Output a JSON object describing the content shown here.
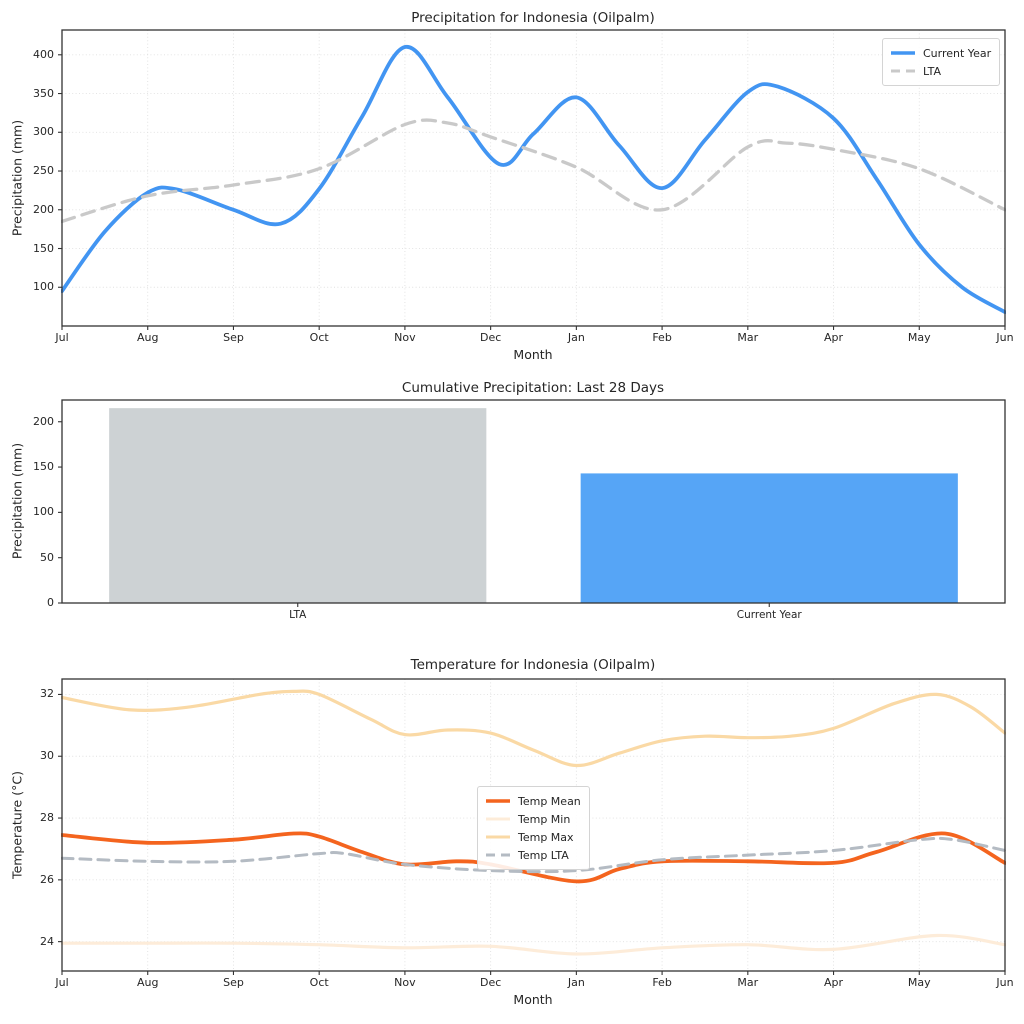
{
  "figure": {
    "background": "#ffffff",
    "text_color": "#262626",
    "grid_color": "#e0e0e0",
    "spine_color": "#333333"
  },
  "chart_data": [
    {
      "type": "line",
      "title": "Precipitation for Indonesia (Oilpalm)",
      "xlabel": "Month",
      "ylabel": "Precipitation (mm)",
      "x_tick_labels": [
        "Jul",
        "Aug",
        "Sep",
        "Oct",
        "Nov",
        "Dec",
        "Jan",
        "Feb",
        "Mar",
        "Apr",
        "May",
        "Jun"
      ],
      "y_ticks": [
        100,
        150,
        200,
        250,
        300,
        350,
        400
      ],
      "ylim": [
        50,
        432
      ],
      "grid": true,
      "legend_position": "top-right",
      "legend_entries": [
        "Current Year",
        "LTA"
      ],
      "series": [
        {
          "name": "Current Year",
          "color": "#4295f2",
          "line_style": "solid",
          "x": [
            0,
            0.5,
            1,
            1.35,
            2,
            2.55,
            3,
            3.5,
            4,
            4.5,
            5.1,
            5.5,
            6,
            6.5,
            7,
            7.5,
            8,
            8.35,
            9,
            9.5,
            10,
            10.5,
            11
          ],
          "y": [
            95,
            172,
            222,
            226,
            200,
            182,
            227,
            320,
            410,
            345,
            259,
            298,
            345,
            283,
            228,
            290,
            352,
            359,
            318,
            240,
            155,
            100,
            68
          ]
        },
        {
          "name": "LTA",
          "color": "#c9c9c9",
          "line_style": "dashed",
          "x": [
            0,
            1,
            2,
            3,
            4,
            4.5,
            5,
            6,
            7,
            8,
            8.45,
            9,
            10,
            11
          ],
          "y": [
            185,
            218,
            232,
            253,
            310,
            312,
            294,
            255,
            200,
            281,
            286,
            278,
            253,
            200
          ]
        }
      ]
    },
    {
      "type": "bar",
      "title": "Cumulative Precipitation: Last 28 Days",
      "xlabel": "",
      "ylabel": "Precipitation (mm)",
      "categories": [
        "LTA",
        "Current Year"
      ],
      "values": [
        215,
        143
      ],
      "bar_colors": [
        "#cdd2d4",
        "#56a5f6"
      ],
      "y_ticks": [
        0,
        50,
        100,
        150,
        200
      ],
      "ylim": [
        0,
        224
      ],
      "grid": false
    },
    {
      "type": "line",
      "title": "Temperature for Indonesia (Oilpalm)",
      "xlabel": "Month",
      "ylabel": "Temperature (°C)",
      "x_tick_labels": [
        "Jul",
        "Aug",
        "Sep",
        "Oct",
        "Nov",
        "Dec",
        "Jan",
        "Feb",
        "Mar",
        "Apr",
        "May",
        "Jun"
      ],
      "y_ticks": [
        24,
        26,
        28,
        30,
        32
      ],
      "ylim": [
        23.05,
        32.5
      ],
      "grid": true,
      "legend_position": "center-left",
      "legend_entries": [
        "Temp Mean",
        "Temp Min",
        "Temp Max",
        "Temp LTA"
      ],
      "series": [
        {
          "name": "Temp Mean",
          "color": "#f4641e",
          "line_style": "solid",
          "x": [
            0,
            1,
            2,
            2.7,
            3,
            3.5,
            4,
            4.6,
            5,
            6,
            6.5,
            7,
            8,
            9,
            9.5,
            10.3,
            11
          ],
          "y": [
            27.45,
            27.2,
            27.3,
            27.5,
            27.4,
            26.9,
            26.5,
            26.6,
            26.5,
            25.95,
            26.35,
            26.6,
            26.6,
            26.55,
            26.9,
            27.5,
            26.55
          ]
        },
        {
          "name": "Temp Min",
          "color": "#fdecd9",
          "line_style": "solid",
          "x": [
            0,
            1,
            2,
            3,
            4,
            5,
            6,
            7,
            8,
            9,
            10.2,
            11
          ],
          "y": [
            23.95,
            23.95,
            23.95,
            23.9,
            23.8,
            23.85,
            23.6,
            23.8,
            23.9,
            23.75,
            24.2,
            23.9
          ]
        },
        {
          "name": "Temp Max",
          "color": "#fad9a5",
          "line_style": "solid",
          "x": [
            0,
            0.8,
            1.5,
            2.3,
            2.7,
            3,
            3.6,
            4,
            4.5,
            5,
            5.5,
            6,
            6.5,
            7,
            7.5,
            8,
            8.5,
            9,
            9.7,
            10.2,
            10.6,
            11
          ],
          "y": [
            31.9,
            31.5,
            31.6,
            32.0,
            32.1,
            32.0,
            31.2,
            30.7,
            30.85,
            30.75,
            30.2,
            29.7,
            30.1,
            30.5,
            30.65,
            30.6,
            30.65,
            30.9,
            31.7,
            32.0,
            31.6,
            30.75
          ]
        },
        {
          "name": "Temp LTA",
          "color": "#b4bbc3",
          "line_style": "dashed",
          "x": [
            0,
            1,
            2,
            3,
            3.3,
            4,
            5,
            6,
            7,
            8,
            9,
            10,
            10.4,
            11
          ],
          "y": [
            26.7,
            26.6,
            26.6,
            26.85,
            26.85,
            26.5,
            26.3,
            26.3,
            26.65,
            26.8,
            26.95,
            27.3,
            27.3,
            26.95
          ]
        }
      ]
    }
  ]
}
